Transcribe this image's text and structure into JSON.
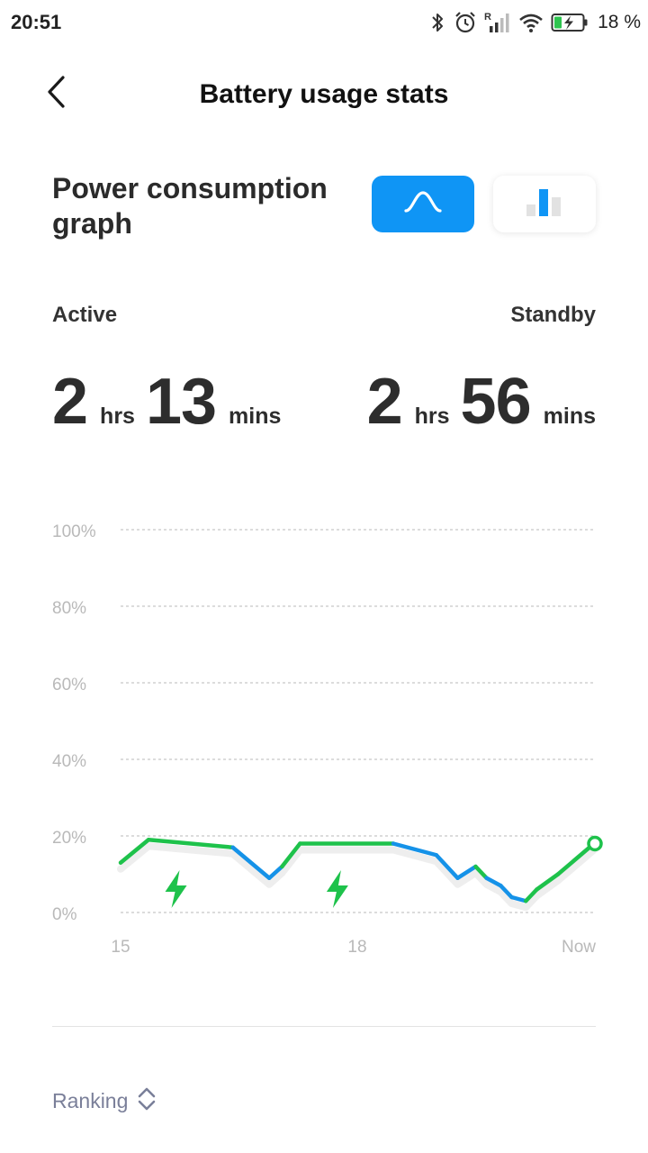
{
  "status_bar": {
    "time": "20:51",
    "battery_percent": "18 %",
    "icons": [
      "bluetooth-icon",
      "alarm-icon",
      "signal-icon",
      "wifi-icon",
      "battery-charging-icon"
    ]
  },
  "header": {
    "title": "Battery usage stats",
    "back_icon": "chevron-left-icon"
  },
  "section": {
    "title": "Power consumption graph",
    "toggle": {
      "options": [
        "curve-view",
        "bar-view"
      ],
      "selected": "curve-view"
    }
  },
  "usage": {
    "active": {
      "label": "Active",
      "hours": "2",
      "hours_unit": "hrs",
      "minutes": "13",
      "minutes_unit": "mins"
    },
    "standby": {
      "label": "Standby",
      "hours": "2",
      "hours_unit": "hrs",
      "minutes": "56",
      "minutes_unit": "mins"
    }
  },
  "colors": {
    "accent": "#0f95f5",
    "charging": "#1ec24b",
    "discharging": "#1592e8",
    "grid": "#c8c8c8",
    "axis_text": "#b9b9b9"
  },
  "chart_data": {
    "type": "line",
    "ylim": [
      0,
      100
    ],
    "y_ticks": [
      "100%",
      "80%",
      "60%",
      "40%",
      "20%",
      "0%"
    ],
    "y_tick_values": [
      100,
      80,
      60,
      40,
      20,
      0
    ],
    "x_ticks": [
      {
        "label": "15",
        "x": 0
      },
      {
        "label": "18",
        "x": 0.5
      },
      {
        "label": "Now",
        "x": 1
      }
    ],
    "grid": true,
    "series": [
      {
        "values": [
          {
            "t": 0.0,
            "v": 13.0,
            "state": "charging"
          },
          {
            "t": 0.059,
            "v": 19.0,
            "state": "charging"
          },
          {
            "t": 0.237,
            "v": 17.0,
            "state": "discharging"
          },
          {
            "t": 0.314,
            "v": 9.0,
            "state": "discharging"
          },
          {
            "t": 0.341,
            "v": 12.0,
            "state": "charging"
          },
          {
            "t": 0.379,
            "v": 18.0,
            "state": "charging"
          },
          {
            "t": 0.576,
            "v": 18.0,
            "state": "discharging"
          },
          {
            "t": 0.667,
            "v": 15.0,
            "state": "discharging"
          },
          {
            "t": 0.712,
            "v": 9.0,
            "state": "discharging"
          },
          {
            "t": 0.75,
            "v": 12.0,
            "state": "charging"
          },
          {
            "t": 0.773,
            "v": 9.0,
            "state": "discharging"
          },
          {
            "t": 0.803,
            "v": 7.0,
            "state": "discharging"
          },
          {
            "t": 0.826,
            "v": 4.0,
            "state": "discharging"
          },
          {
            "t": 0.856,
            "v": 3.0,
            "state": "charging"
          },
          {
            "t": 0.879,
            "v": 6.0,
            "state": "charging"
          },
          {
            "t": 0.924,
            "v": 10.0,
            "state": "charging"
          },
          {
            "t": 1.0,
            "v": 18.0,
            "state": "charging"
          }
        ]
      }
    ],
    "charging_markers": [
      0.117,
      0.458
    ]
  },
  "ranking": {
    "label": "Ranking",
    "icon": "sort-toggle-icon"
  }
}
